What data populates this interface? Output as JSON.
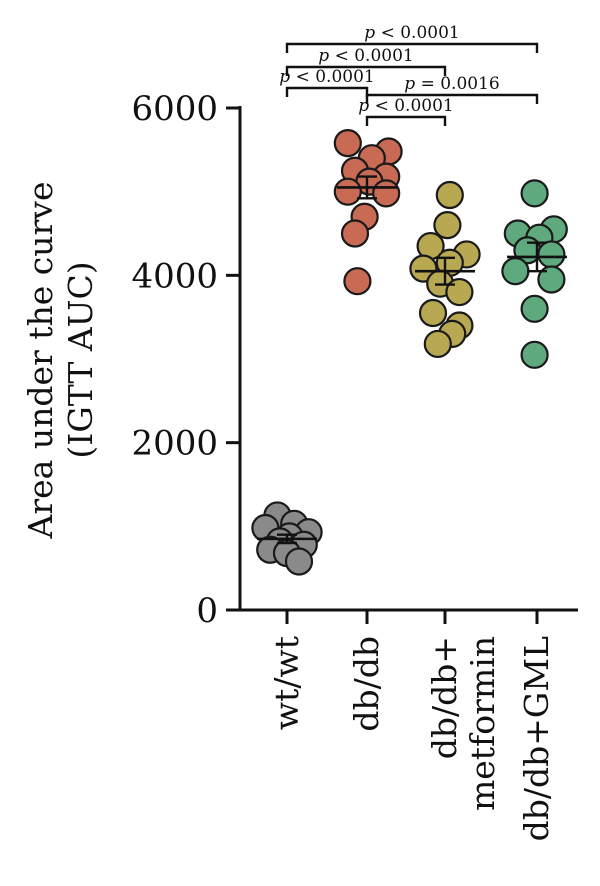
{
  "chart_data": {
    "type": "scatter",
    "ylabel_line1": "Area under the curve",
    "ylabel_line2": "(IGTT AUC)",
    "ylim": [
      0,
      6000
    ],
    "yticks": [
      "0",
      "2000",
      "4000",
      "6000"
    ],
    "ytick_values": [
      0,
      2000,
      4000,
      6000
    ],
    "grid": false,
    "categories": [
      {
        "lines": [
          "wt/wt"
        ],
        "color": "#8a8a8a"
      },
      {
        "lines": [
          "db/db"
        ],
        "color": "#c96a55"
      },
      {
        "lines": [
          "db/db+",
          "metformin"
        ],
        "color": "#b8a851"
      },
      {
        "lines": [
          "db/db+GML"
        ],
        "color": "#5fa97e"
      }
    ],
    "series": [
      {
        "values": [
          1130,
          1030,
          980,
          930,
          880,
          820,
          780,
          720,
          680,
          580
        ],
        "offsets": [
          -0.2,
          0.15,
          -0.45,
          0.45,
          0.05,
          -0.15,
          0.35,
          -0.35,
          0.0,
          0.25
        ],
        "mean": 850,
        "sem": 50
      },
      {
        "values": [
          5580,
          5480,
          5400,
          5250,
          5180,
          5120,
          5000,
          4980,
          4700,
          4500,
          3930
        ],
        "offsets": [
          -0.4,
          0.45,
          0.1,
          -0.25,
          0.4,
          0.05,
          -0.4,
          0.4,
          -0.05,
          -0.25,
          -0.2
        ],
        "mean": 5050,
        "sem": 130
      },
      {
        "values": [
          4960,
          4600,
          4350,
          4250,
          4150,
          4080,
          3900,
          3800,
          3550,
          3400,
          3300,
          3180
        ],
        "offsets": [
          0.1,
          0.05,
          -0.3,
          0.45,
          0.1,
          -0.45,
          -0.1,
          0.3,
          -0.25,
          0.3,
          0.15,
          -0.15
        ],
        "mean": 4050,
        "sem": 160
      },
      {
        "values": [
          4980,
          4550,
          4500,
          4450,
          4300,
          4250,
          4050,
          3950,
          3600,
          3050
        ],
        "offsets": [
          -0.05,
          0.35,
          -0.4,
          0.05,
          -0.2,
          0.3,
          -0.45,
          0.3,
          -0.05,
          -0.05
        ],
        "mean": 4220,
        "sem": 170
      }
    ],
    "comparisons": [
      {
        "from": 0,
        "to": 3,
        "prefix": "p",
        "text": " < 0.0001"
      },
      {
        "from": 0,
        "to": 2,
        "prefix": "p",
        "text": " < 0.0001"
      },
      {
        "from": 0,
        "to": 1,
        "prefix": "p",
        "text": " < 0.0001"
      },
      {
        "from": 1,
        "to": 3,
        "prefix": "p",
        "text": " = 0.0016"
      },
      {
        "from": 1,
        "to": 2,
        "prefix": "p",
        "text": " < 0.0001"
      }
    ]
  }
}
